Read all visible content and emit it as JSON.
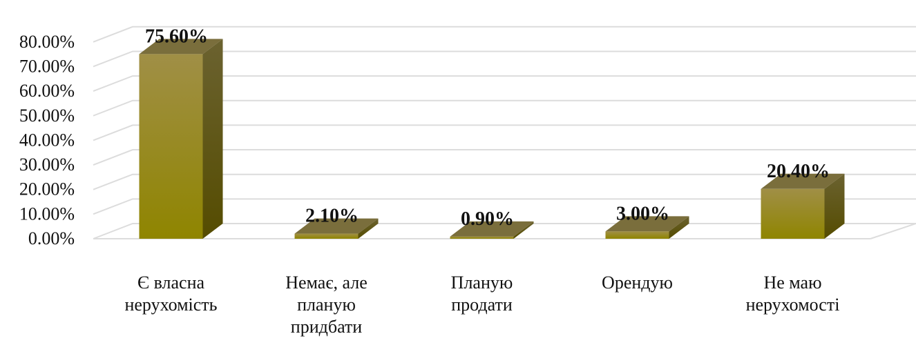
{
  "chart_data": {
    "type": "bar",
    "style": "3d-column",
    "categories": [
      [
        "Є власна",
        "нерухомість"
      ],
      [
        "Немає, але",
        "планую",
        "придбати"
      ],
      [
        "Планую",
        "продати"
      ],
      [
        "Орендую"
      ],
      [
        "Не маю",
        "нерухомості"
      ]
    ],
    "values": [
      75.6,
      2.1,
      0.9,
      3.0,
      20.4
    ],
    "data_labels": [
      "75.60%",
      "2.10%",
      "0.90%",
      "3.00%",
      "20.40%"
    ],
    "yticks": [
      "0.00%",
      "10.00%",
      "20.00%",
      "30.00%",
      "40.00%",
      "50.00%",
      "60.00%",
      "70.00%",
      "80.00%"
    ],
    "ylim": [
      0,
      80
    ],
    "grid": true,
    "legend": "none",
    "colors": {
      "bar_front_top": "#a08f46",
      "bar_front_bottom": "#8f8500",
      "bar_side": "#5c5400",
      "bar_top": "#7a6e3c",
      "grid": "#dcdcdc",
      "text": "#111111"
    }
  }
}
